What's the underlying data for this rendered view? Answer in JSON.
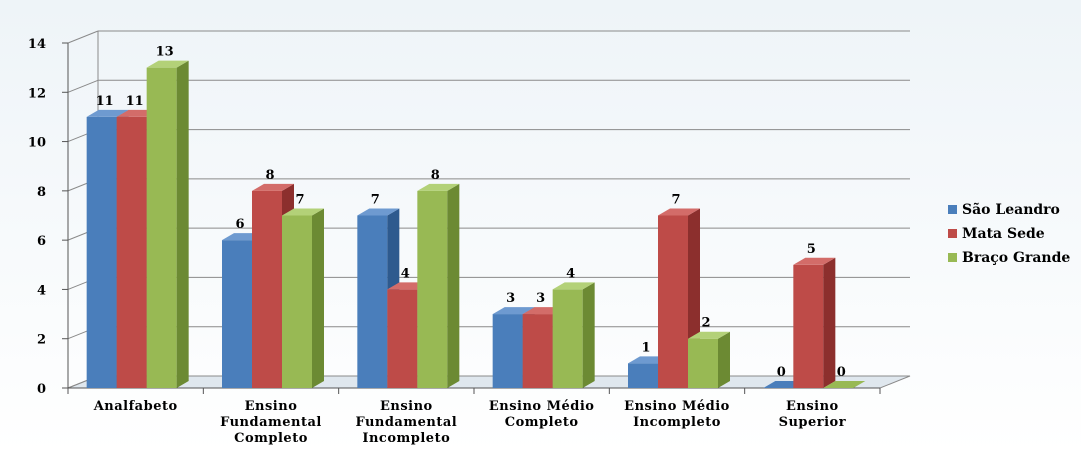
{
  "chart_data": {
    "type": "bar",
    "title": "",
    "xlabel": "",
    "ylabel": "",
    "ylim": [
      0,
      14
    ],
    "yticks": [
      0,
      2,
      4,
      6,
      8,
      10,
      12,
      14
    ],
    "grid": true,
    "legend_position": "right",
    "categories": [
      [
        "Analfabeto"
      ],
      [
        "Ensino",
        "Fundamental",
        "Completo"
      ],
      [
        "Ensino",
        "Fundamental",
        "Incompleto"
      ],
      [
        "Ensino Médio",
        "Completo"
      ],
      [
        "Ensino Médio",
        "Incompleto"
      ],
      [
        "Ensino",
        "Superior"
      ]
    ],
    "series": [
      {
        "name": "São Leandro",
        "values": [
          11,
          6,
          7,
          3,
          1,
          0
        ],
        "color": "#4a7ebb",
        "side": "#2e5a8e",
        "top": "#6e9ad0"
      },
      {
        "name": "Mata Sede",
        "values": [
          11,
          8,
          4,
          3,
          7,
          5
        ],
        "color": "#be4b48",
        "side": "#8c2f2d",
        "top": "#d36c69"
      },
      {
        "name": "Braço Grande",
        "values": [
          13,
          7,
          8,
          4,
          2,
          0
        ],
        "color": "#98b954",
        "side": "#6c8a33",
        "top": "#b3d178"
      }
    ]
  }
}
